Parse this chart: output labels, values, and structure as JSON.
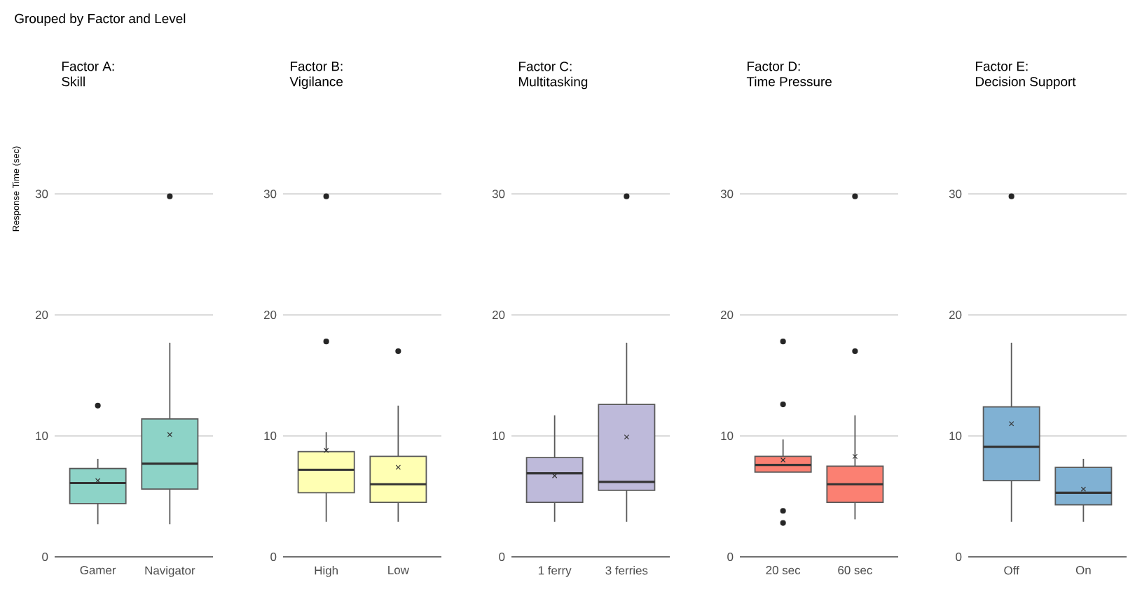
{
  "chart_data": [
    {
      "type": "box",
      "title": "Factor A:",
      "subtitle": "Skill",
      "ylabel": "Response Time (sec)",
      "annotations": [
        "Grouped by Factor and Level"
      ],
      "categories": [
        "Gamer",
        "Navigator"
      ],
      "color": "#8dd3c7",
      "ylim": [
        0,
        30
      ],
      "yticks": [
        0,
        10,
        20,
        30
      ],
      "grid": "y",
      "boxes": [
        {
          "low": 2.7,
          "q1": 4.4,
          "median": 6.1,
          "q3": 7.3,
          "high": 8.1,
          "mean": 6.3,
          "outliers": [
            12.5
          ]
        },
        {
          "low": 2.7,
          "q1": 5.6,
          "median": 7.7,
          "q3": 11.4,
          "high": 17.7,
          "mean": 10.1,
          "outliers": [
            29.8
          ]
        }
      ]
    },
    {
      "type": "box",
      "title": "Factor B:",
      "subtitle": "Vigilance",
      "categories": [
        "High",
        "Low"
      ],
      "color": "#ffffb3",
      "ylim": [
        0,
        30
      ],
      "yticks": [
        0,
        10,
        20,
        30
      ],
      "grid": "y",
      "boxes": [
        {
          "low": 2.9,
          "q1": 5.3,
          "median": 7.2,
          "q3": 8.7,
          "high": 10.3,
          "mean": 8.8,
          "outliers": [
            17.8,
            29.8
          ]
        },
        {
          "low": 2.9,
          "q1": 4.5,
          "median": 6.0,
          "q3": 8.3,
          "high": 12.5,
          "mean": 7.4,
          "outliers": [
            17.0
          ]
        }
      ]
    },
    {
      "type": "box",
      "title": "Factor C:",
      "subtitle": "Multitasking",
      "categories": [
        "1 ferry",
        "3 ferries"
      ],
      "color": "#bebada",
      "ylim": [
        0,
        30
      ],
      "yticks": [
        0,
        10,
        20,
        30
      ],
      "grid": "y",
      "boxes": [
        {
          "low": 2.9,
          "q1": 4.5,
          "median": 6.9,
          "q3": 8.2,
          "high": 11.7,
          "mean": 6.7
        },
        {
          "low": 2.9,
          "q1": 5.5,
          "median": 6.2,
          "q3": 12.6,
          "high": 17.7,
          "mean": 9.9,
          "outliers": [
            29.8
          ]
        }
      ]
    },
    {
      "type": "box",
      "title": "Factor D:",
      "subtitle": "Time Pressure",
      "categories": [
        "20 sec",
        "60 sec"
      ],
      "color": "#fb8072",
      "ylim": [
        0,
        30
      ],
      "yticks": [
        0,
        10,
        20,
        30
      ],
      "grid": "y",
      "boxes": [
        {
          "low": 7.0,
          "q1": 7.0,
          "median": 7.6,
          "q3": 8.3,
          "high": 9.7,
          "mean": 8.0,
          "outliers": [
            2.8,
            3.8,
            12.6,
            17.8
          ]
        },
        {
          "low": 3.1,
          "q1": 4.5,
          "median": 6.0,
          "q3": 7.5,
          "high": 11.7,
          "mean": 8.3,
          "outliers": [
            17.0,
            29.8
          ]
        }
      ]
    },
    {
      "type": "box",
      "title": "Factor E:",
      "subtitle": "Decision Support",
      "categories": [
        "Off",
        "On"
      ],
      "color": "#80b1d3",
      "ylim": [
        0,
        30
      ],
      "yticks": [
        0,
        10,
        20,
        30
      ],
      "grid": "y",
      "boxes": [
        {
          "low": 2.9,
          "q1": 6.3,
          "median": 9.1,
          "q3": 12.4,
          "high": 17.7,
          "mean": 11.0,
          "outliers": [
            29.8
          ]
        },
        {
          "low": 2.9,
          "q1": 4.3,
          "median": 5.3,
          "q3": 7.4,
          "high": 8.1,
          "mean": 5.6
        }
      ]
    }
  ]
}
